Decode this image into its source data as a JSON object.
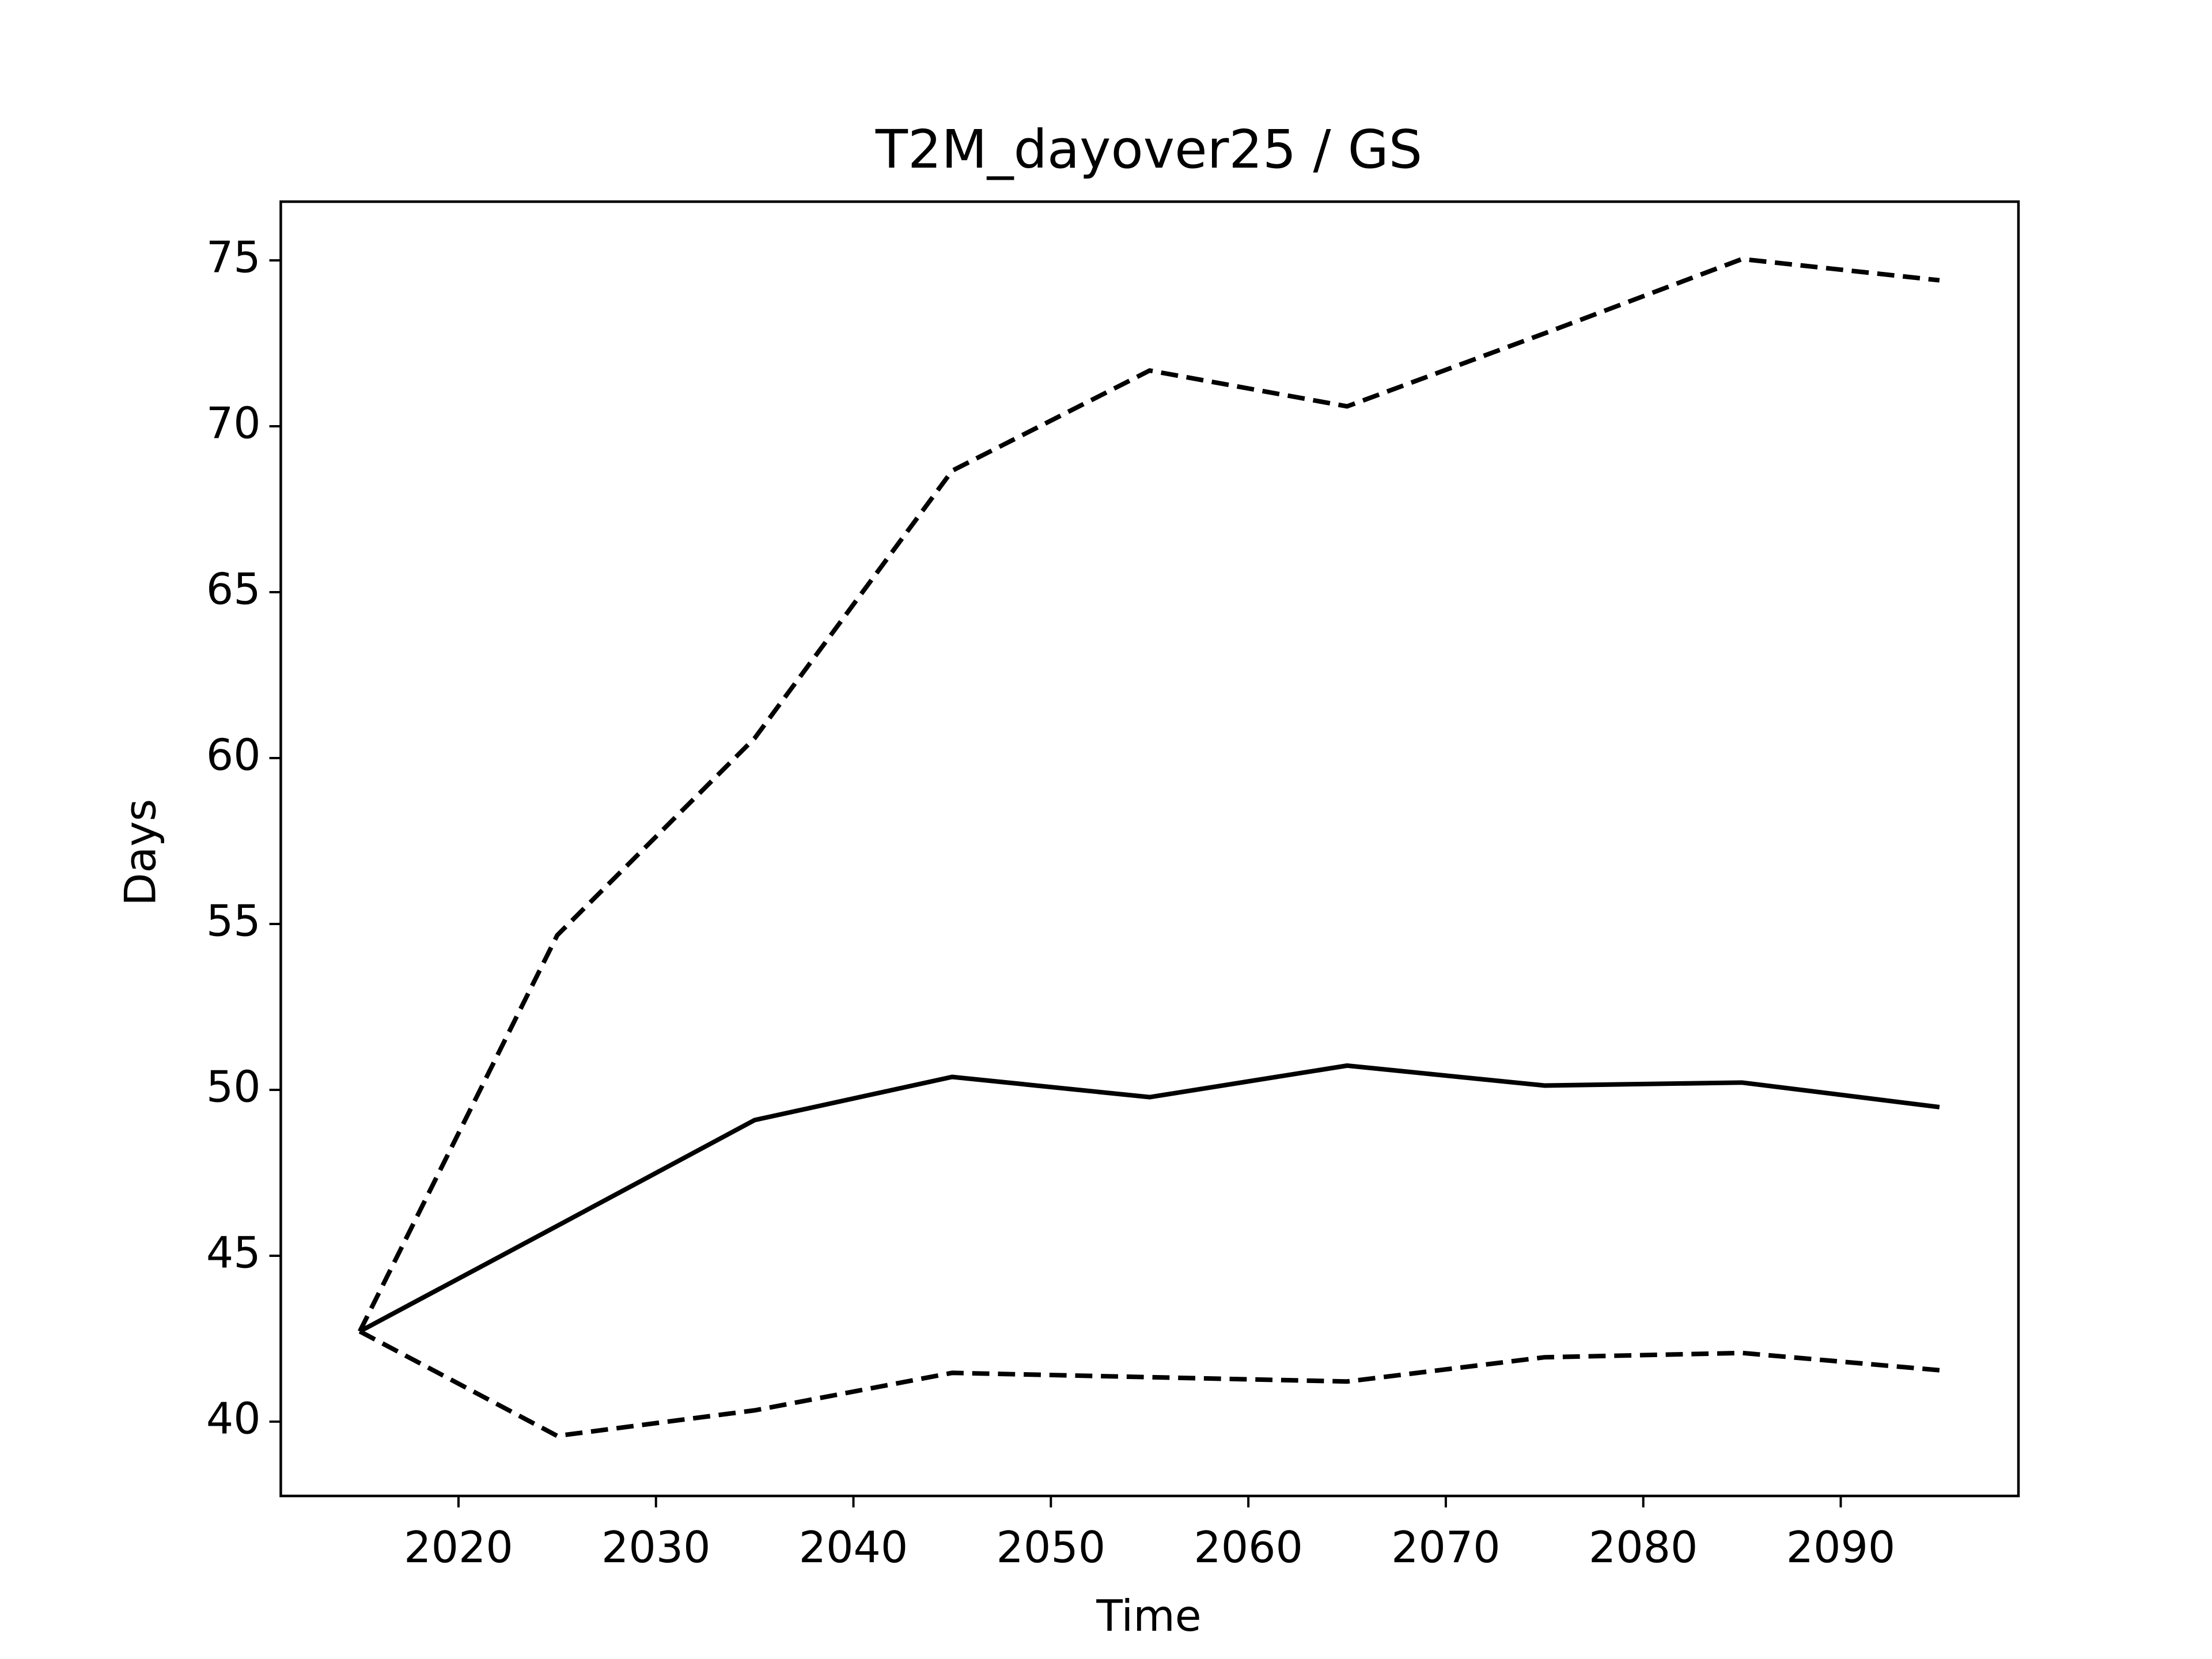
{
  "chart_data": {
    "type": "line",
    "title": "T2M_dayover25 / GS",
    "x_label": "Time",
    "y_label": "Days",
    "x": [
      2015,
      2025,
      2035,
      2045,
      2055,
      2065,
      2075,
      2085,
      2095
    ],
    "series": [
      {
        "color": "#000000",
        "linestyle": "solid",
        "values": [
          42.72,
          45.9,
          49.09,
          50.39,
          49.78,
          50.73,
          50.13,
          50.22,
          49.48
        ]
      },
      {
        "color": "#000000",
        "linestyle": "dashed",
        "values": [
          42.72,
          54.66,
          60.6,
          68.66,
          71.68,
          70.6,
          72.8,
          75.04,
          74.4
        ]
      },
      {
        "color": "#000000",
        "linestyle": "dashed",
        "values": [
          42.72,
          39.57,
          40.34,
          41.47,
          41.34,
          41.21,
          41.94,
          42.07,
          41.55
        ]
      }
    ],
    "xlim": [
      2011,
      2099
    ],
    "xticks": [
      2020,
      2030,
      2040,
      2050,
      2060,
      2070,
      2080,
      2090
    ],
    "ylim": [
      37.76,
      76.77
    ],
    "yticks": [
      40,
      45,
      50,
      55,
      60,
      65,
      70,
      75
    ],
    "grid": false
  }
}
